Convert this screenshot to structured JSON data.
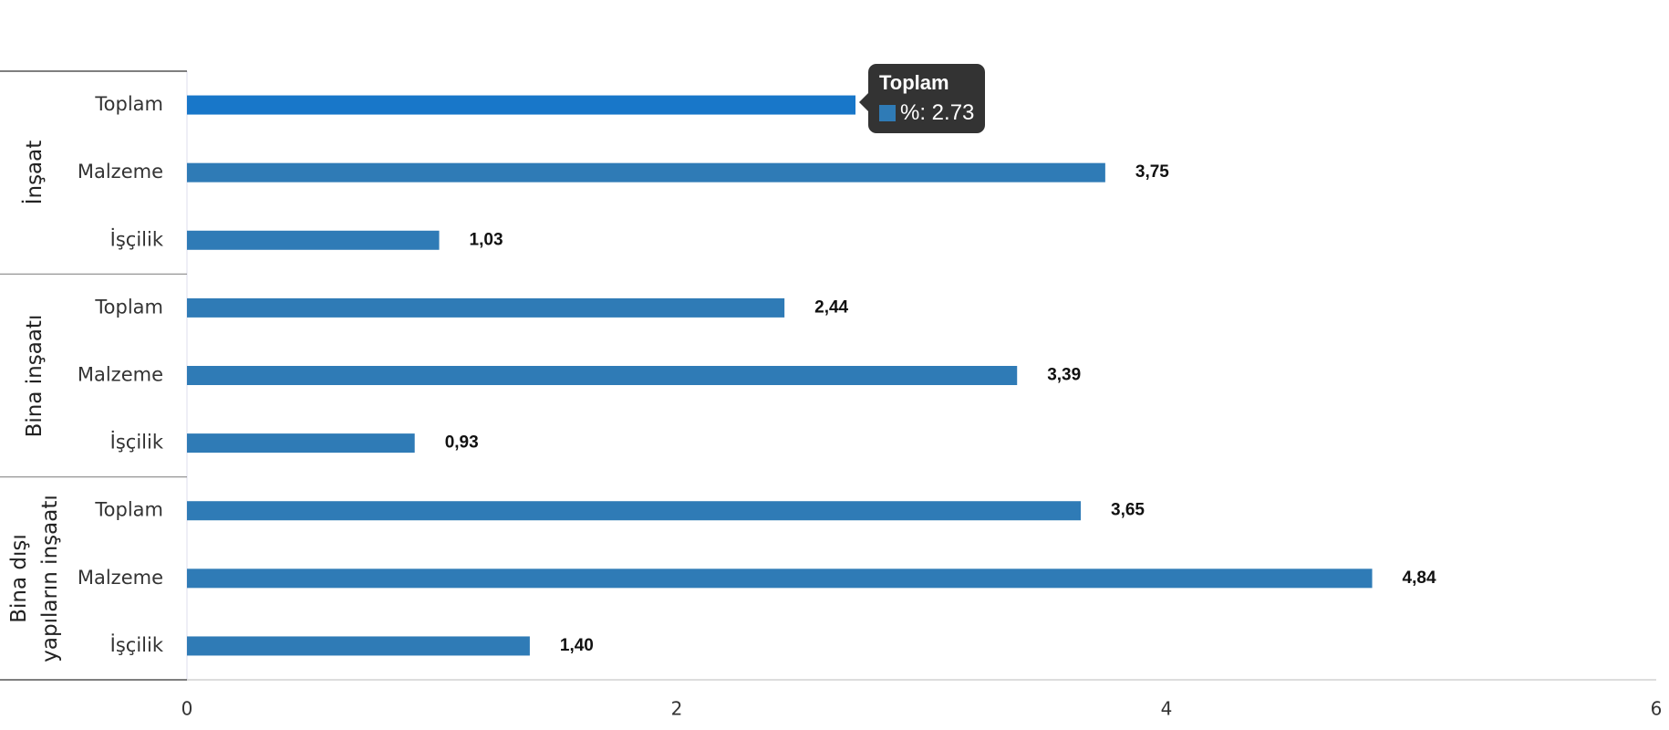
{
  "chart_data": {
    "type": "bar",
    "orientation": "horizontal",
    "color": "#2f7bb6",
    "highlight_color": "#1877c9",
    "groups": [
      {
        "label": "İnşaat",
        "categories": [
          "Toplam",
          "Malzeme",
          "İşçilik"
        ],
        "values": [
          2.73,
          3.75,
          1.03
        ],
        "value_labels": [
          "2,73",
          "3,75",
          "1,03"
        ]
      },
      {
        "label": "Bina inşaatı",
        "categories": [
          "Toplam",
          "Malzeme",
          "İşçilik"
        ],
        "values": [
          2.44,
          3.39,
          0.93
        ],
        "value_labels": [
          "2,44",
          "3,39",
          "0,93"
        ]
      },
      {
        "label": "Bina dışı yapıların inşaatı",
        "categories": [
          "Toplam",
          "Malzeme",
          "İşçilik"
        ],
        "values": [
          3.65,
          4.84,
          1.4
        ],
        "value_labels": [
          "3,65",
          "4,84",
          "1,40"
        ]
      }
    ],
    "xlim": [
      0,
      6
    ],
    "xticks": [
      0,
      2,
      4,
      6
    ],
    "tooltip": {
      "title": "Toplam",
      "label": "%: 2.73"
    }
  }
}
